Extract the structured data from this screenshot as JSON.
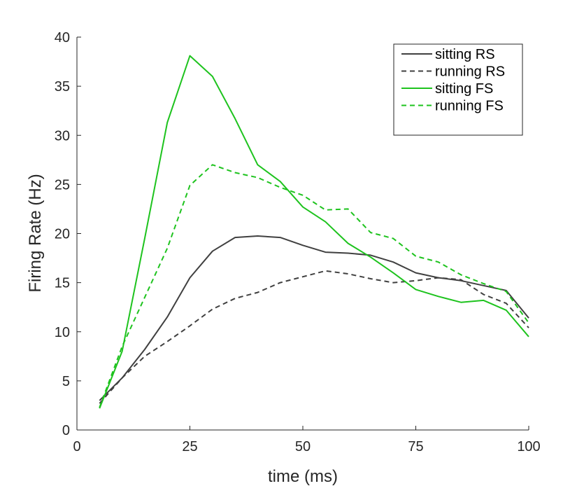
{
  "chart_data": {
    "type": "line",
    "title": "",
    "xlabel": "time (ms)",
    "ylabel": "Firing Rate (Hz)",
    "xlim": [
      0,
      100
    ],
    "ylim": [
      0,
      40
    ],
    "xticks": [
      0,
      25,
      50,
      75,
      100
    ],
    "yticks": [
      0,
      5,
      10,
      15,
      20,
      25,
      30,
      35,
      40
    ],
    "grid": false,
    "legend_position": "top-right",
    "x": [
      5,
      10,
      15,
      20,
      25,
      30,
      35,
      40,
      45,
      50,
      55,
      60,
      65,
      70,
      75,
      80,
      85,
      90,
      95,
      100
    ],
    "series": [
      {
        "name": "sitting RS",
        "color": "#404040",
        "dash": "solid",
        "values": [
          3.0,
          5.3,
          8.2,
          11.5,
          15.5,
          18.2,
          19.6,
          19.75,
          19.6,
          18.8,
          18.1,
          18.0,
          17.8,
          17.1,
          16.0,
          15.5,
          15.2,
          14.7,
          14.2,
          11.4
        ]
      },
      {
        "name": "running RS",
        "color": "#404040",
        "dash": "dashed",
        "values": [
          2.7,
          5.3,
          7.5,
          9.0,
          10.6,
          12.3,
          13.4,
          14.0,
          15.0,
          15.6,
          16.2,
          15.9,
          15.4,
          15.0,
          15.2,
          15.5,
          15.3,
          13.8,
          12.9,
          10.4
        ]
      },
      {
        "name": "sitting FS",
        "color": "#1ec31e",
        "dash": "solid",
        "values": [
          2.2,
          8.0,
          19.5,
          31.3,
          38.1,
          36.0,
          31.7,
          27.0,
          25.3,
          22.7,
          21.2,
          19.0,
          17.6,
          16.0,
          14.3,
          13.6,
          13.0,
          13.2,
          12.2,
          9.5
        ]
      },
      {
        "name": "running FS",
        "color": "#1ec31e",
        "dash": "dashed",
        "values": [
          2.3,
          8.5,
          13.5,
          18.5,
          24.9,
          27.0,
          26.2,
          25.7,
          24.7,
          23.9,
          22.4,
          22.5,
          20.1,
          19.5,
          17.7,
          17.1,
          15.8,
          14.9,
          14.1,
          10.9
        ]
      }
    ]
  }
}
